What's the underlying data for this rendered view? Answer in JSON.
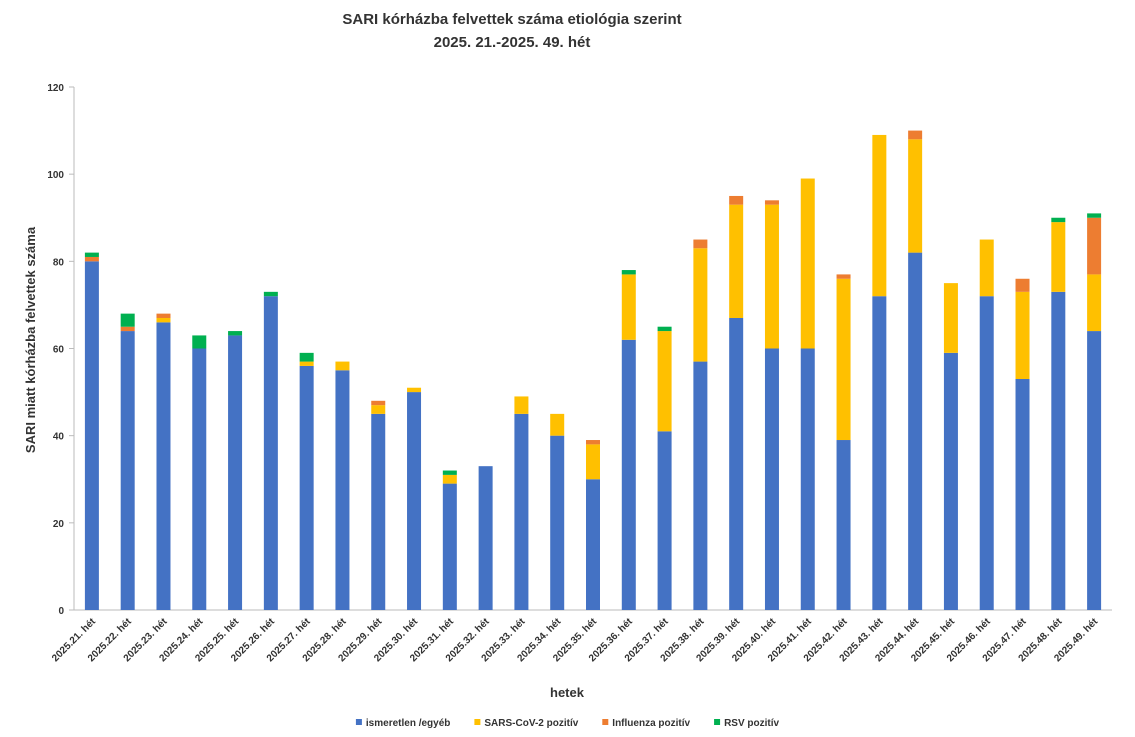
{
  "chart_data": {
    "type": "stacked_bar",
    "title": "SARI kórházba felvettek száma etiológia szerint",
    "subtitle": "2025. 21.-2025. 49. hét",
    "x_label": "hetek",
    "y_label": "SARI miatt kórházba felvettek száma",
    "categories": [
      "2025.21. hét",
      "2025.22. hét",
      "2025.23. hét",
      "2025.24. hét",
      "2025.25. hét",
      "2025.26. hét",
      "2025.27. hét",
      "2025.28. hét",
      "2025.29. hét",
      "2025.30. hét",
      "2025.31. hét",
      "2025.32. hét",
      "2025.33. hét",
      "2025.34. hét",
      "2025.35. hét",
      "2025.36. hét",
      "2025.37. hét",
      "2025.38. hét",
      "2025.39. hét",
      "2025.40. hét",
      "2025.41. hét",
      "2025.42. hét",
      "2025.43. hét",
      "2025.44. hét",
      "2025.45. hét",
      "2025.46. hét",
      "2025.47. hét",
      "2025.48. hét",
      "2025.49. hét"
    ],
    "series": [
      {
        "name": "ismeretlen /egyéb",
        "color": "#4472c4",
        "values": [
          80,
          64,
          66,
          60,
          63,
          72,
          56,
          55,
          45,
          50,
          29,
          33,
          45,
          40,
          30,
          62,
          41,
          57,
          67,
          60,
          60,
          39,
          72,
          82,
          59,
          72,
          53,
          73,
          64
        ]
      },
      {
        "name": "SARS-CoV-2 pozitív",
        "color": "#ffc000",
        "values": [
          0,
          0,
          1,
          0,
          0,
          0,
          1,
          2,
          2,
          1,
          2,
          0,
          4,
          5,
          8,
          15,
          23,
          26,
          26,
          33,
          39,
          37,
          37,
          26,
          16,
          13,
          20,
          16,
          13
        ]
      },
      {
        "name": "Influenza pozitív",
        "color": "#ed7d31",
        "values": [
          1,
          1,
          1,
          0,
          0,
          0,
          0,
          0,
          1,
          0,
          0,
          0,
          0,
          0,
          1,
          0,
          0,
          2,
          2,
          1,
          0,
          1,
          0,
          2,
          0,
          0,
          3,
          0,
          13
        ]
      },
      {
        "name": "RSV pozitív",
        "color": "#00b050",
        "values": [
          1,
          3,
          0,
          3,
          1,
          1,
          2,
          0,
          0,
          0,
          1,
          0,
          0,
          0,
          0,
          1,
          1,
          0,
          0,
          0,
          0,
          0,
          0,
          0,
          0,
          0,
          0,
          1,
          1
        ]
      }
    ],
    "ylim": [
      0,
      120
    ],
    "yticks": [
      0,
      20,
      40,
      60,
      80,
      100,
      120
    ],
    "grid": false
  }
}
